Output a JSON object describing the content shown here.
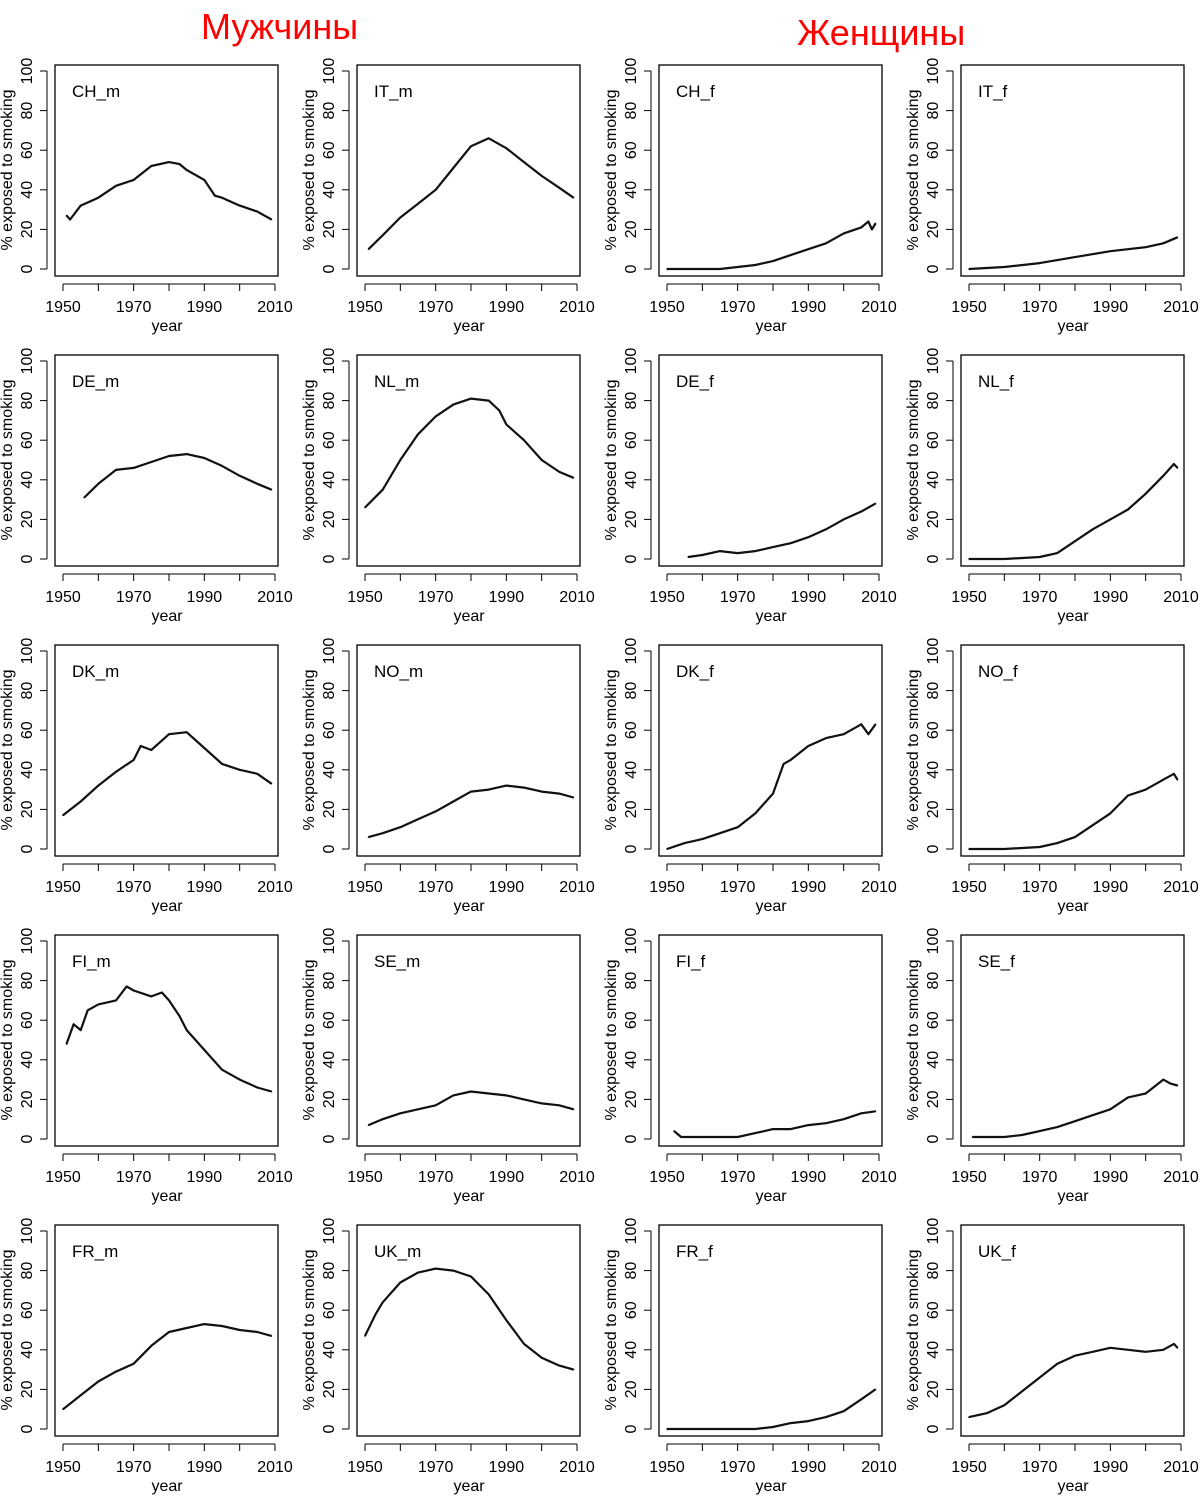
{
  "headers": {
    "men": "Мужчины",
    "women": "Женщины",
    "color": "#ff0000"
  },
  "chart_data": [
    {
      "type": "line",
      "title": "CH_m",
      "xlabel": "year",
      "ylabel": "% exposed to smoking",
      "xlim": [
        1950,
        2010
      ],
      "ylim": [
        0,
        100
      ],
      "xticks": [
        1950,
        1970,
        1990,
        2010
      ],
      "yticks": [
        0,
        20,
        40,
        60,
        80,
        100
      ],
      "x": [
        1951,
        1952,
        1955,
        1960,
        1965,
        1970,
        1975,
        1980,
        1983,
        1985,
        1990,
        1993,
        1995,
        2000,
        2005,
        2009
      ],
      "y": [
        27,
        25,
        32,
        36,
        42,
        45,
        52,
        54,
        53,
        50,
        45,
        37,
        36,
        32,
        29,
        25
      ]
    },
    {
      "type": "line",
      "title": "IT_m",
      "xlabel": "year",
      "ylabel": "% exposed to smoking",
      "xlim": [
        1950,
        2010
      ],
      "ylim": [
        0,
        100
      ],
      "xticks": [
        1950,
        1970,
        1990,
        2010
      ],
      "yticks": [
        0,
        20,
        40,
        60,
        80,
        100
      ],
      "x": [
        1951,
        1955,
        1960,
        1965,
        1970,
        1975,
        1980,
        1985,
        1990,
        1995,
        2000,
        2005,
        2009
      ],
      "y": [
        10,
        17,
        26,
        33,
        40,
        51,
        62,
        66,
        61,
        54,
        47,
        41,
        36
      ]
    },
    {
      "type": "line",
      "title": "CH_f",
      "xlabel": "year",
      "ylabel": "% exposed to smoking",
      "xlim": [
        1950,
        2010
      ],
      "ylim": [
        0,
        100
      ],
      "xticks": [
        1950,
        1970,
        1990,
        2010
      ],
      "yticks": [
        0,
        20,
        40,
        60,
        80,
        100
      ],
      "x": [
        1950,
        1960,
        1965,
        1970,
        1975,
        1980,
        1985,
        1990,
        1995,
        2000,
        2005,
        2007,
        2008,
        2009
      ],
      "y": [
        0,
        0,
        0,
        1,
        2,
        4,
        7,
        10,
        13,
        18,
        21,
        24,
        20,
        23
      ]
    },
    {
      "type": "line",
      "title": "IT_f",
      "xlabel": "year",
      "ylabel": "% exposed to smoking",
      "xlim": [
        1950,
        2010
      ],
      "ylim": [
        0,
        100
      ],
      "xticks": [
        1950,
        1970,
        1990,
        2010
      ],
      "yticks": [
        0,
        20,
        40,
        60,
        80,
        100
      ],
      "x": [
        1950,
        1960,
        1970,
        1980,
        1990,
        2000,
        2005,
        2009
      ],
      "y": [
        0,
        1,
        3,
        6,
        9,
        11,
        13,
        16
      ]
    },
    {
      "type": "line",
      "title": "DE_m",
      "xlabel": "year",
      "ylabel": "% exposed to smoking",
      "xlim": [
        1950,
        2010
      ],
      "ylim": [
        0,
        100
      ],
      "xticks": [
        1950,
        1970,
        1990,
        2010
      ],
      "yticks": [
        0,
        20,
        40,
        60,
        80,
        100
      ],
      "x": [
        1956,
        1960,
        1965,
        1970,
        1975,
        1980,
        1985,
        1990,
        1995,
        2000,
        2005,
        2009
      ],
      "y": [
        31,
        38,
        45,
        46,
        49,
        52,
        53,
        51,
        47,
        42,
        38,
        35
      ]
    },
    {
      "type": "line",
      "title": "NL_m",
      "xlabel": "year",
      "ylabel": "% exposed to smoking",
      "xlim": [
        1950,
        2010
      ],
      "ylim": [
        0,
        100
      ],
      "xticks": [
        1950,
        1970,
        1990,
        2010
      ],
      "yticks": [
        0,
        20,
        40,
        60,
        80,
        100
      ],
      "x": [
        1950,
        1955,
        1960,
        1965,
        1970,
        1975,
        1980,
        1985,
        1988,
        1990,
        1995,
        2000,
        2005,
        2009
      ],
      "y": [
        26,
        35,
        50,
        63,
        72,
        78,
        81,
        80,
        75,
        68,
        60,
        50,
        44,
        41
      ]
    },
    {
      "type": "line",
      "title": "DE_f",
      "xlabel": "year",
      "ylabel": "% exposed to smoking",
      "xlim": [
        1950,
        2010
      ],
      "ylim": [
        0,
        100
      ],
      "xticks": [
        1950,
        1970,
        1990,
        2010
      ],
      "yticks": [
        0,
        20,
        40,
        60,
        80,
        100
      ],
      "x": [
        1956,
        1960,
        1965,
        1970,
        1975,
        1980,
        1985,
        1990,
        1995,
        2000,
        2005,
        2009
      ],
      "y": [
        1,
        2,
        4,
        3,
        4,
        6,
        8,
        11,
        15,
        20,
        24,
        28
      ]
    },
    {
      "type": "line",
      "title": "NL_f",
      "xlabel": "year",
      "ylabel": "% exposed to smoking",
      "xlim": [
        1950,
        2010
      ],
      "ylim": [
        0,
        100
      ],
      "xticks": [
        1950,
        1970,
        1990,
        2010
      ],
      "yticks": [
        0,
        20,
        40,
        60,
        80,
        100
      ],
      "x": [
        1950,
        1960,
        1970,
        1975,
        1980,
        1985,
        1990,
        1995,
        2000,
        2005,
        2008,
        2009
      ],
      "y": [
        0,
        0,
        1,
        3,
        9,
        15,
        20,
        25,
        33,
        42,
        48,
        46
      ]
    },
    {
      "type": "line",
      "title": "DK_m",
      "xlabel": "year",
      "ylabel": "% exposed to smoking",
      "xlim": [
        1950,
        2010
      ],
      "ylim": [
        0,
        100
      ],
      "xticks": [
        1950,
        1970,
        1990,
        2010
      ],
      "yticks": [
        0,
        20,
        40,
        60,
        80,
        100
      ],
      "x": [
        1950,
        1955,
        1960,
        1965,
        1970,
        1972,
        1975,
        1980,
        1985,
        1990,
        1995,
        2000,
        2005,
        2009
      ],
      "y": [
        17,
        24,
        32,
        39,
        45,
        52,
        50,
        58,
        59,
        51,
        43,
        40,
        38,
        33
      ]
    },
    {
      "type": "line",
      "title": "NO_m",
      "xlabel": "year",
      "ylabel": "% exposed to smoking",
      "xlim": [
        1950,
        2010
      ],
      "ylim": [
        0,
        100
      ],
      "xticks": [
        1950,
        1970,
        1990,
        2010
      ],
      "yticks": [
        0,
        20,
        40,
        60,
        80,
        100
      ],
      "x": [
        1951,
        1955,
        1960,
        1965,
        1970,
        1975,
        1980,
        1985,
        1990,
        1995,
        2000,
        2005,
        2009
      ],
      "y": [
        6,
        8,
        11,
        15,
        19,
        24,
        29,
        30,
        32,
        31,
        29,
        28,
        26
      ]
    },
    {
      "type": "line",
      "title": "DK_f",
      "xlabel": "year",
      "ylabel": "% exposed to smoking",
      "xlim": [
        1950,
        2010
      ],
      "ylim": [
        0,
        100
      ],
      "xticks": [
        1950,
        1970,
        1990,
        2010
      ],
      "yticks": [
        0,
        20,
        40,
        60,
        80,
        100
      ],
      "x": [
        1950,
        1955,
        1960,
        1965,
        1970,
        1975,
        1980,
        1983,
        1985,
        1990,
        1995,
        2000,
        2005,
        2007,
        2009
      ],
      "y": [
        0,
        3,
        5,
        8,
        11,
        18,
        28,
        43,
        45,
        52,
        56,
        58,
        63,
        58,
        63
      ]
    },
    {
      "type": "line",
      "title": "NO_f",
      "xlabel": "year",
      "ylabel": "% exposed to smoking",
      "xlim": [
        1950,
        2010
      ],
      "ylim": [
        0,
        100
      ],
      "xticks": [
        1950,
        1970,
        1990,
        2010
      ],
      "yticks": [
        0,
        20,
        40,
        60,
        80,
        100
      ],
      "x": [
        1950,
        1960,
        1970,
        1975,
        1980,
        1985,
        1990,
        1995,
        2000,
        2005,
        2008,
        2009
      ],
      "y": [
        0,
        0,
        1,
        3,
        6,
        12,
        18,
        27,
        30,
        35,
        38,
        35
      ]
    },
    {
      "type": "line",
      "title": "FI_m",
      "xlabel": "year",
      "ylabel": "% exposed to smoking",
      "xlim": [
        1950,
        2010
      ],
      "ylim": [
        0,
        100
      ],
      "xticks": [
        1950,
        1970,
        1990,
        2010
      ],
      "yticks": [
        0,
        20,
        40,
        60,
        80,
        100
      ],
      "x": [
        1951,
        1953,
        1955,
        1957,
        1960,
        1965,
        1968,
        1970,
        1975,
        1978,
        1980,
        1983,
        1985,
        1990,
        1995,
        2000,
        2005,
        2009
      ],
      "y": [
        48,
        58,
        55,
        65,
        68,
        70,
        77,
        75,
        72,
        74,
        70,
        62,
        55,
        45,
        35,
        30,
        26,
        24
      ]
    },
    {
      "type": "line",
      "title": "SE_m",
      "xlabel": "year",
      "ylabel": "% exposed to smoking",
      "xlim": [
        1950,
        2010
      ],
      "ylim": [
        0,
        100
      ],
      "xticks": [
        1950,
        1970,
        1990,
        2010
      ],
      "yticks": [
        0,
        20,
        40,
        60,
        80,
        100
      ],
      "x": [
        1951,
        1955,
        1960,
        1965,
        1970,
        1975,
        1980,
        1985,
        1990,
        1995,
        2000,
        2005,
        2009
      ],
      "y": [
        7,
        10,
        13,
        15,
        17,
        22,
        24,
        23,
        22,
        20,
        18,
        17,
        15
      ]
    },
    {
      "type": "line",
      "title": "FI_f",
      "xlabel": "year",
      "ylabel": "% exposed to smoking",
      "xlim": [
        1950,
        2010
      ],
      "ylim": [
        0,
        100
      ],
      "xticks": [
        1950,
        1970,
        1990,
        2010
      ],
      "yticks": [
        0,
        20,
        40,
        60,
        80,
        100
      ],
      "x": [
        1952,
        1954,
        1960,
        1970,
        1975,
        1980,
        1985,
        1990,
        1995,
        2000,
        2005,
        2009
      ],
      "y": [
        4,
        1,
        1,
        1,
        3,
        5,
        5,
        7,
        8,
        10,
        13,
        14
      ]
    },
    {
      "type": "line",
      "title": "SE_f",
      "xlabel": "year",
      "ylabel": "% exposed to smoking",
      "xlim": [
        1950,
        2010
      ],
      "ylim": [
        0,
        100
      ],
      "xticks": [
        1950,
        1970,
        1990,
        2010
      ],
      "yticks": [
        0,
        20,
        40,
        60,
        80,
        100
      ],
      "x": [
        1951,
        1955,
        1960,
        1965,
        1970,
        1975,
        1980,
        1985,
        1990,
        1995,
        2000,
        2005,
        2007,
        2009
      ],
      "y": [
        1,
        1,
        1,
        2,
        4,
        6,
        9,
        12,
        15,
        21,
        23,
        30,
        28,
        27
      ]
    },
    {
      "type": "line",
      "title": "FR_m",
      "xlabel": "year",
      "ylabel": "% exposed to smoking",
      "xlim": [
        1950,
        2010
      ],
      "ylim": [
        0,
        100
      ],
      "xticks": [
        1950,
        1970,
        1990,
        2010
      ],
      "yticks": [
        0,
        20,
        40,
        60,
        80,
        100
      ],
      "x": [
        1950,
        1955,
        1960,
        1965,
        1970,
        1975,
        1980,
        1985,
        1990,
        1995,
        2000,
        2005,
        2009
      ],
      "y": [
        10,
        17,
        24,
        29,
        33,
        42,
        49,
        51,
        53,
        52,
        50,
        49,
        47
      ]
    },
    {
      "type": "line",
      "title": "UK_m",
      "xlabel": "year",
      "ylabel": "% exposed to smoking",
      "xlim": [
        1950,
        2010
      ],
      "ylim": [
        0,
        100
      ],
      "xticks": [
        1950,
        1970,
        1990,
        2010
      ],
      "yticks": [
        0,
        20,
        40,
        60,
        80,
        100
      ],
      "x": [
        1950,
        1953,
        1955,
        1960,
        1965,
        1970,
        1975,
        1980,
        1985,
        1990,
        1995,
        2000,
        2005,
        2009
      ],
      "y": [
        47,
        58,
        64,
        74,
        79,
        81,
        80,
        77,
        68,
        55,
        43,
        36,
        32,
        30
      ]
    },
    {
      "type": "line",
      "title": "FR_f",
      "xlabel": "year",
      "ylabel": "% exposed to smoking",
      "xlim": [
        1950,
        2010
      ],
      "ylim": [
        0,
        100
      ],
      "xticks": [
        1950,
        1970,
        1990,
        2010
      ],
      "yticks": [
        0,
        20,
        40,
        60,
        80,
        100
      ],
      "x": [
        1950,
        1970,
        1975,
        1980,
        1985,
        1990,
        1995,
        2000,
        2005,
        2009
      ],
      "y": [
        0,
        0,
        0,
        1,
        3,
        4,
        6,
        9,
        15,
        20
      ]
    },
    {
      "type": "line",
      "title": "UK_f",
      "xlabel": "year",
      "ylabel": "% exposed to smoking",
      "xlim": [
        1950,
        2010
      ],
      "ylim": [
        0,
        100
      ],
      "xticks": [
        1950,
        1970,
        1990,
        2010
      ],
      "yticks": [
        0,
        20,
        40,
        60,
        80,
        100
      ],
      "x": [
        1950,
        1955,
        1960,
        1965,
        1970,
        1975,
        1980,
        1985,
        1990,
        1995,
        2000,
        2005,
        2008,
        2009
      ],
      "y": [
        6,
        8,
        12,
        19,
        26,
        33,
        37,
        39,
        41,
        40,
        39,
        40,
        43,
        41
      ]
    }
  ]
}
